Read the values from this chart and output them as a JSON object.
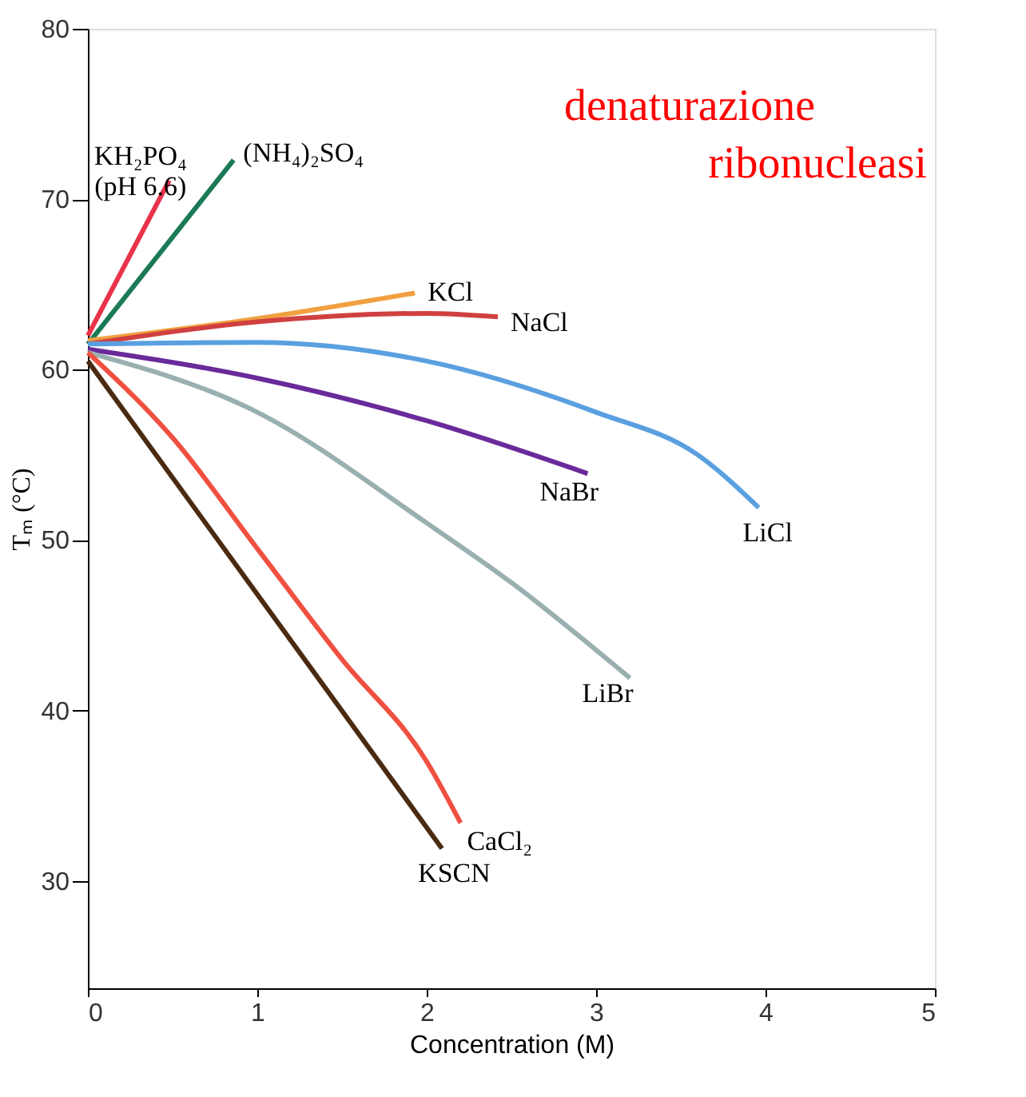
{
  "chart_data": {
    "type": "line",
    "xlabel": "Concentration (M)",
    "ylabel": "Tₘ (°C)",
    "annotations": [
      "denaturazione",
      "ribonucleasi"
    ],
    "xlim": [
      0,
      5
    ],
    "xticks": [
      0,
      1,
      2,
      3,
      4,
      5
    ],
    "ylim": [
      23.7,
      80
    ],
    "yticks": [
      30,
      40,
      50,
      60,
      70,
      80
    ],
    "grid": false,
    "marker": "none",
    "line_style": "solid",
    "series": [
      {
        "name": "KH₂PO₄\n(pH 6.6)",
        "color": "#e8334a",
        "x": [
          0,
          0.48
        ],
        "values": [
          62,
          71.1
        ]
      },
      {
        "name": "(NH₄)₂SO₄",
        "color": "#1a7a55",
        "x": [
          0,
          0.86
        ],
        "values": [
          61.5,
          72.3
        ]
      },
      {
        "name": "KCl",
        "color": "#f0a040",
        "x": [
          0,
          1,
          1.93
        ],
        "values": [
          61.7,
          63,
          64.5
        ]
      },
      {
        "name": "NaCl",
        "color": "#d04040",
        "x": [
          0,
          1,
          2,
          2.42
        ],
        "values": [
          61.5,
          62.8,
          63.3,
          63.1
        ]
      },
      {
        "name": "LiCl",
        "color": "#5aa0e0",
        "x": [
          0,
          1,
          2,
          3,
          3.6,
          3.96
        ],
        "values": [
          61.5,
          61.6,
          60.5,
          57.5,
          55,
          51.9
        ]
      },
      {
        "name": "NaBr",
        "color": "#6a2a9a",
        "x": [
          0,
          1,
          2,
          2.95
        ],
        "values": [
          61.2,
          59.5,
          57,
          53.9
        ]
      },
      {
        "name": "LiBr",
        "color": "#9ab0b0",
        "x": [
          0,
          1,
          2,
          2.5,
          3.2
        ],
        "values": [
          61,
          57.5,
          51,
          47.5,
          41.9
        ]
      },
      {
        "name": "CaCl₂",
        "color": "#f05040",
        "x": [
          0,
          0.5,
          1,
          1.5,
          2,
          2.2
        ],
        "values": [
          61,
          56,
          49.5,
          43,
          37,
          33.4
        ]
      },
      {
        "name": "KSCN",
        "color": "#4a2a10",
        "x": [
          0,
          2.09
        ],
        "values": [
          60.5,
          31.9
        ]
      }
    ]
  }
}
